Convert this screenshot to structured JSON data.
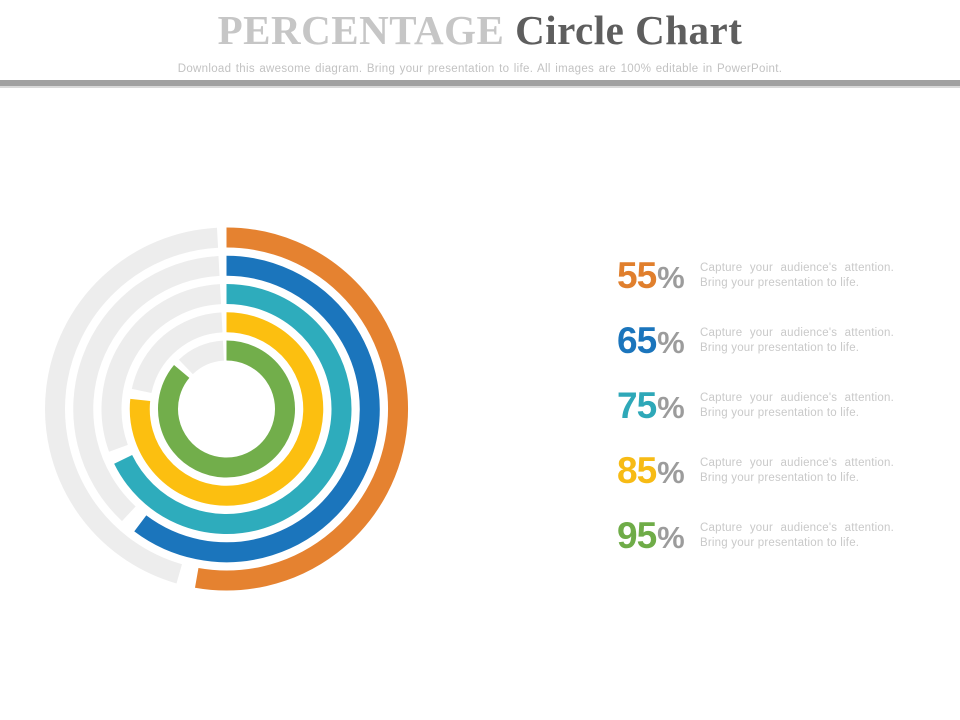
{
  "header": {
    "title_accent": "PERCENTAGE",
    "title_rest": "Circle Chart",
    "subtitle": "Download this awesome diagram. Bring your presentation to life. All images are 100% editable in PowerPoint."
  },
  "chart_data": {
    "type": "radial-progress",
    "title": "PERCENTAGE Circle Chart",
    "start": "top",
    "direction": "clockwise",
    "track_color": "#EDEDED",
    "track_gap_after_deg": 6,
    "track_end_deg": 357,
    "series": [
      {
        "label": "55%",
        "value": 55,
        "sweep_deg": 190,
        "color": "#E58230"
      },
      {
        "label": "65%",
        "value": 65,
        "sweep_deg": 217,
        "color": "#1B75BC"
      },
      {
        "label": "75%",
        "value": 75,
        "sweep_deg": 244,
        "color": "#2EACBC"
      },
      {
        "label": "85%",
        "value": 85,
        "sweep_deg": 276,
        "color": "#FCBF10"
      },
      {
        "label": "95%",
        "value": 95,
        "sweep_deg": 310,
        "color": "#72AE4B"
      }
    ]
  },
  "legend": {
    "items": [
      {
        "value": "55",
        "unit": "%",
        "color": "#E07F2D",
        "caption_line1": "Capture your audience's attention.",
        "caption_line2": "Bring your presentation to life."
      },
      {
        "value": "65",
        "unit": "%",
        "color": "#1B75BC",
        "caption_line1": "Capture your audience's attention.",
        "caption_line2": "Bring your presentation to life."
      },
      {
        "value": "75",
        "unit": "%",
        "color": "#2EA8B8",
        "caption_line1": "Capture your audience's attention.",
        "caption_line2": "Bring your presentation to life."
      },
      {
        "value": "85",
        "unit": "%",
        "color": "#F7BB15",
        "caption_line1": "Capture your audience's attention.",
        "caption_line2": "Bring your presentation to life."
      },
      {
        "value": "95",
        "unit": "%",
        "color": "#6FAC48",
        "caption_line1": "Capture your audience's attention.",
        "caption_line2": "Bring your presentation to life."
      }
    ]
  }
}
